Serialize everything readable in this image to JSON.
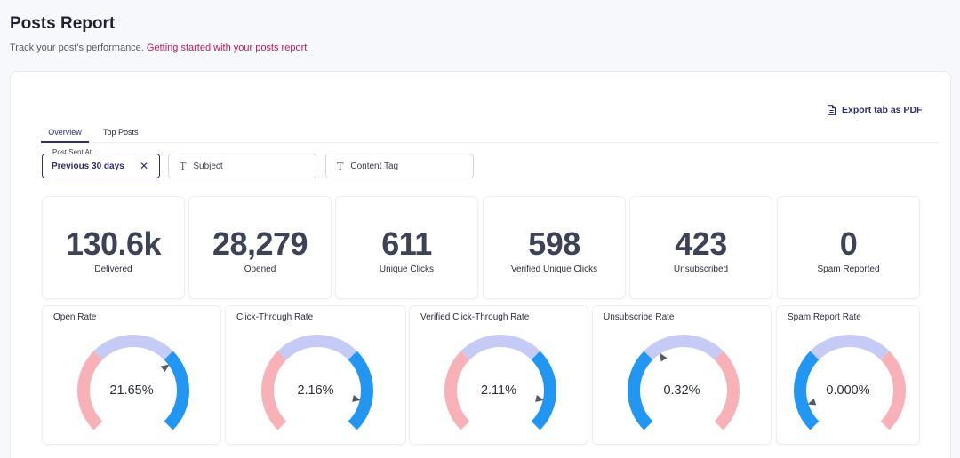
{
  "header": {
    "title": "Posts Report",
    "subtitle": "Track your post's performance.",
    "help_link": "Getting started with your posts report"
  },
  "toolbar": {
    "export_label": "Export tab as PDF"
  },
  "tabs": [
    {
      "label": "Overview",
      "active": true
    },
    {
      "label": "Top Posts",
      "active": false
    }
  ],
  "filters": {
    "post_sent_at": {
      "label": "Post Sent At",
      "value": "Previous 30 days"
    },
    "subject": {
      "placeholder": "Subject"
    },
    "content_tag": {
      "placeholder": "Content Tag"
    }
  },
  "stats": [
    {
      "value": "130.6k",
      "label": "Delivered"
    },
    {
      "value": "28,279",
      "label": "Opened"
    },
    {
      "value": "611",
      "label": "Unique Clicks"
    },
    {
      "value": "598",
      "label": "Verified Unique Clicks"
    },
    {
      "value": "423",
      "label": "Unsubscribed"
    },
    {
      "value": "0",
      "label": "Spam Reported"
    }
  ],
  "gauges": [
    {
      "title": "Open Rate",
      "value": "21.65%",
      "polarity": "good",
      "needle": 0.7
    },
    {
      "title": "Click-Through Rate",
      "value": "2.16%",
      "polarity": "good",
      "needle": 0.88
    },
    {
      "title": "Verified Click-Through Rate",
      "value": "2.11%",
      "polarity": "good",
      "needle": 0.88
    },
    {
      "title": "Unsubscribe Rate",
      "value": "0.32%",
      "polarity": "bad",
      "needle": 0.38
    },
    {
      "title": "Spam Report Rate",
      "value": "0.000%",
      "polarity": "bad",
      "needle": 0.1
    }
  ],
  "colors": {
    "blue": "#2196f3",
    "light_blue": "#c5cbf5",
    "pink": "#f7b1b7",
    "needle": "#555a66",
    "accent": "#2c2f6e",
    "link": "#c2185b"
  }
}
